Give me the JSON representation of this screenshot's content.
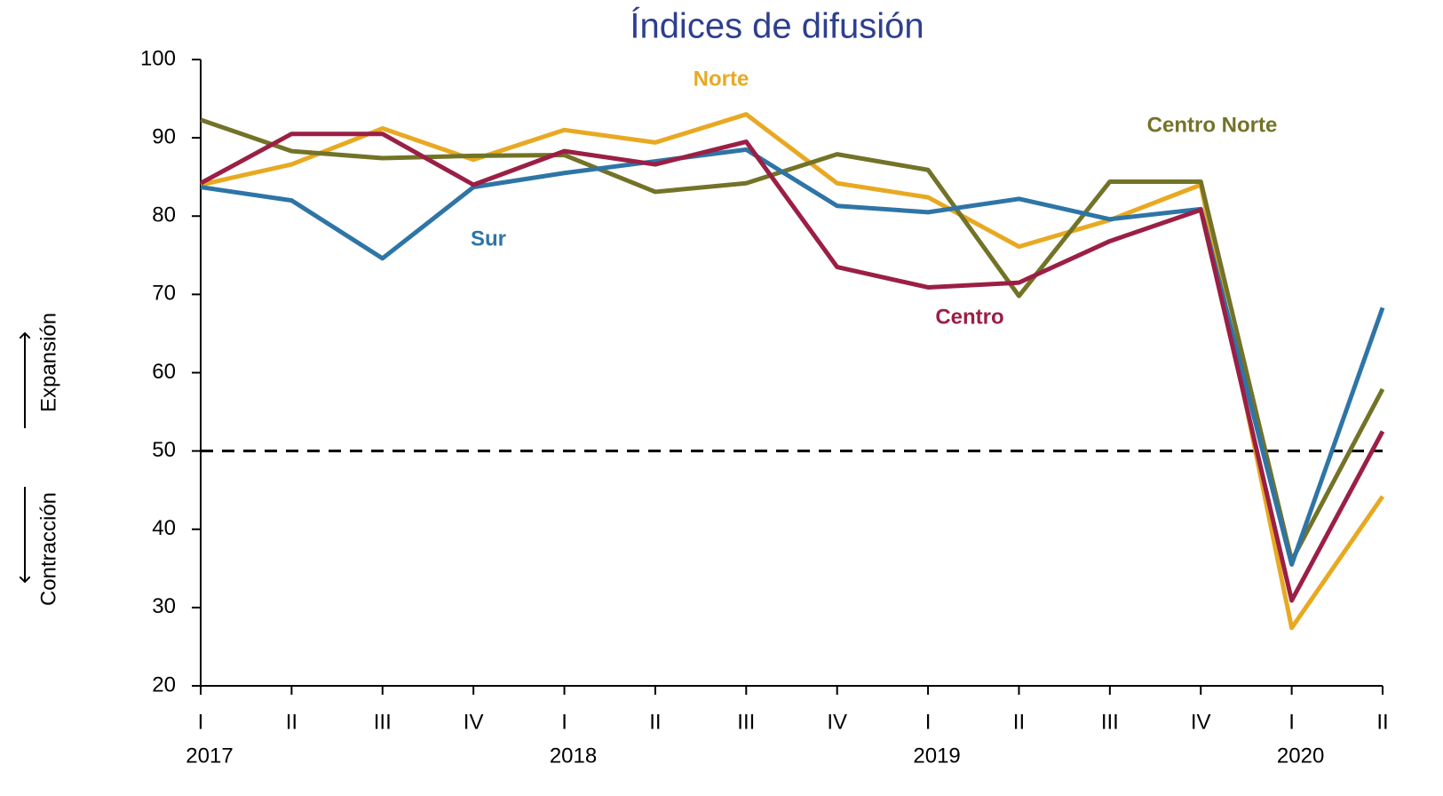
{
  "chart_data": {
    "type": "line",
    "title": "Índices de difusión",
    "categories": [
      "I",
      "II",
      "III",
      "IV",
      "I",
      "II",
      "III",
      "IV",
      "I",
      "II",
      "III",
      "IV",
      "I",
      "II"
    ],
    "years": [
      "2017",
      "2018",
      "2019",
      "2020"
    ],
    "series": [
      {
        "name": "Norte",
        "color": "#E8A922",
        "values": [
          84.0,
          86.6,
          91.2,
          87.2,
          91.0,
          89.4,
          93.0,
          84.2,
          82.4,
          76.1,
          79.5,
          84.0,
          27.4,
          44.2
        ]
      },
      {
        "name": "Centro Norte",
        "color": "#737328",
        "values": [
          92.3,
          88.3,
          87.4,
          87.7,
          87.8,
          83.1,
          84.2,
          87.9,
          85.9,
          69.8,
          84.4,
          84.4,
          36.0,
          57.9
        ]
      },
      {
        "name": "Sur",
        "color": "#2E75A6",
        "values": [
          83.7,
          82.0,
          74.6,
          83.7,
          85.5,
          87.0,
          88.5,
          81.3,
          80.5,
          82.2,
          79.6,
          80.9,
          35.5,
          68.3
        ]
      },
      {
        "name": "Centro",
        "color": "#9B1F45",
        "values": [
          84.2,
          90.5,
          90.5,
          84.0,
          88.3,
          86.6,
          89.5,
          73.5,
          70.9,
          71.5,
          76.8,
          80.8,
          30.9,
          52.5
        ]
      }
    ],
    "ylim": [
      20,
      100
    ],
    "yticks": [
      20,
      30,
      40,
      50,
      60,
      70,
      80,
      90,
      100
    ],
    "reference_line": 50,
    "y_annotations": [
      "Expansión",
      "Contracción"
    ]
  }
}
